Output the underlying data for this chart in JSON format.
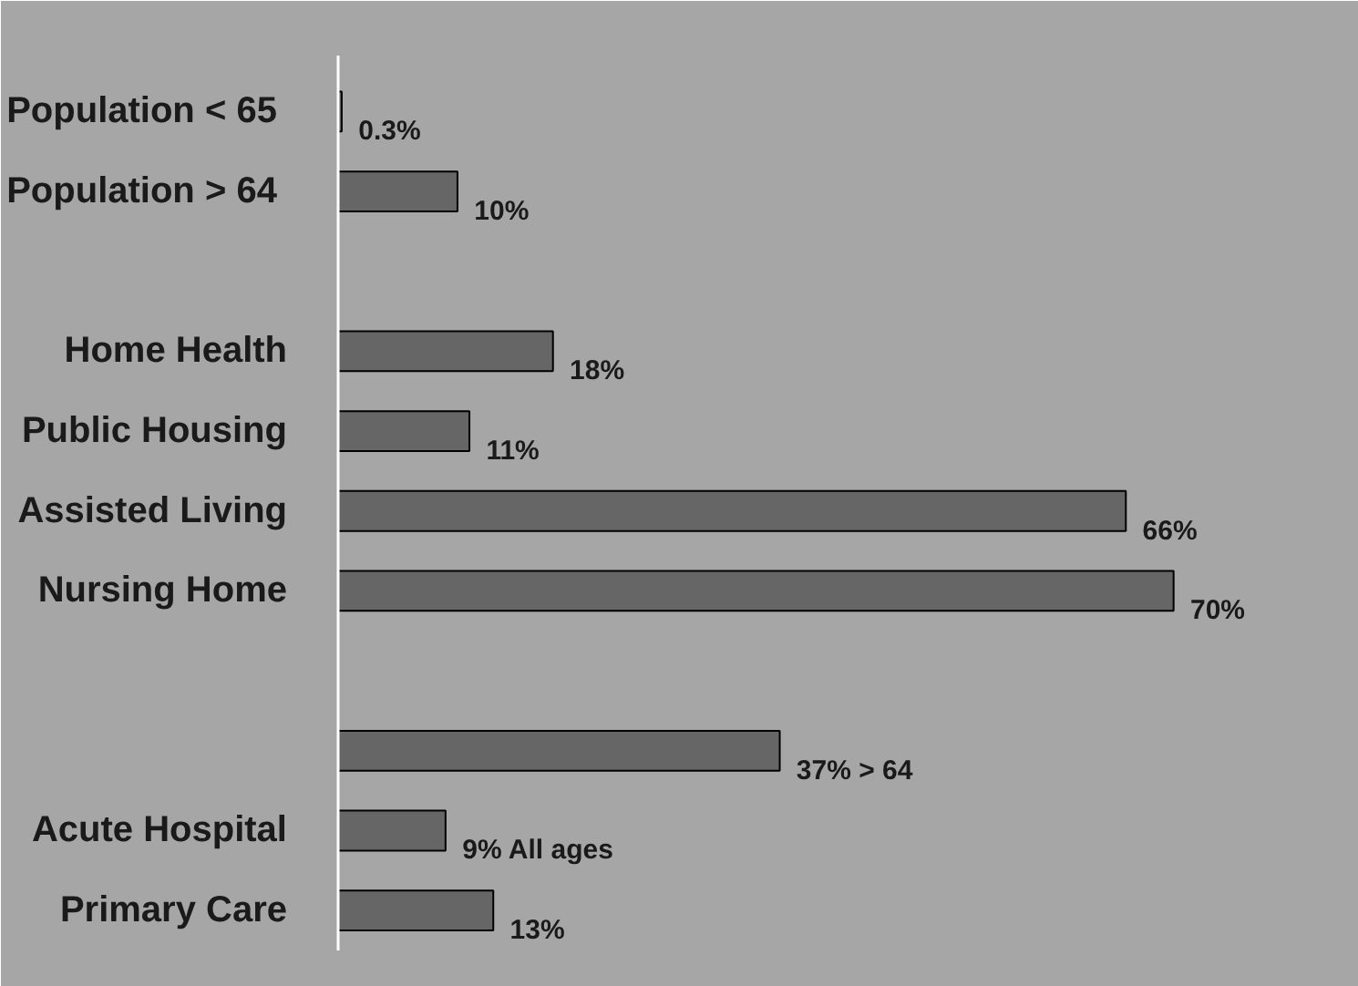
{
  "chart_data": {
    "type": "bar",
    "orientation": "horizontal",
    "categories": [
      "Population  < 65",
      "Population  > 64",
      null,
      "Home Health",
      "Public Housing",
      "Assisted Living",
      "Nursing Home",
      null,
      null,
      "Acute Hospital",
      "Primary Care"
    ],
    "values": [
      0.3,
      10,
      null,
      18,
      11,
      66,
      70,
      null,
      37,
      9,
      13
    ],
    "value_labels": [
      "0.3%",
      "10%",
      null,
      "18%",
      "11%",
      "66%",
      "70%",
      null,
      "37%  > 64",
      "9%  All ages",
      "13%"
    ],
    "color": "#666666"
  }
}
